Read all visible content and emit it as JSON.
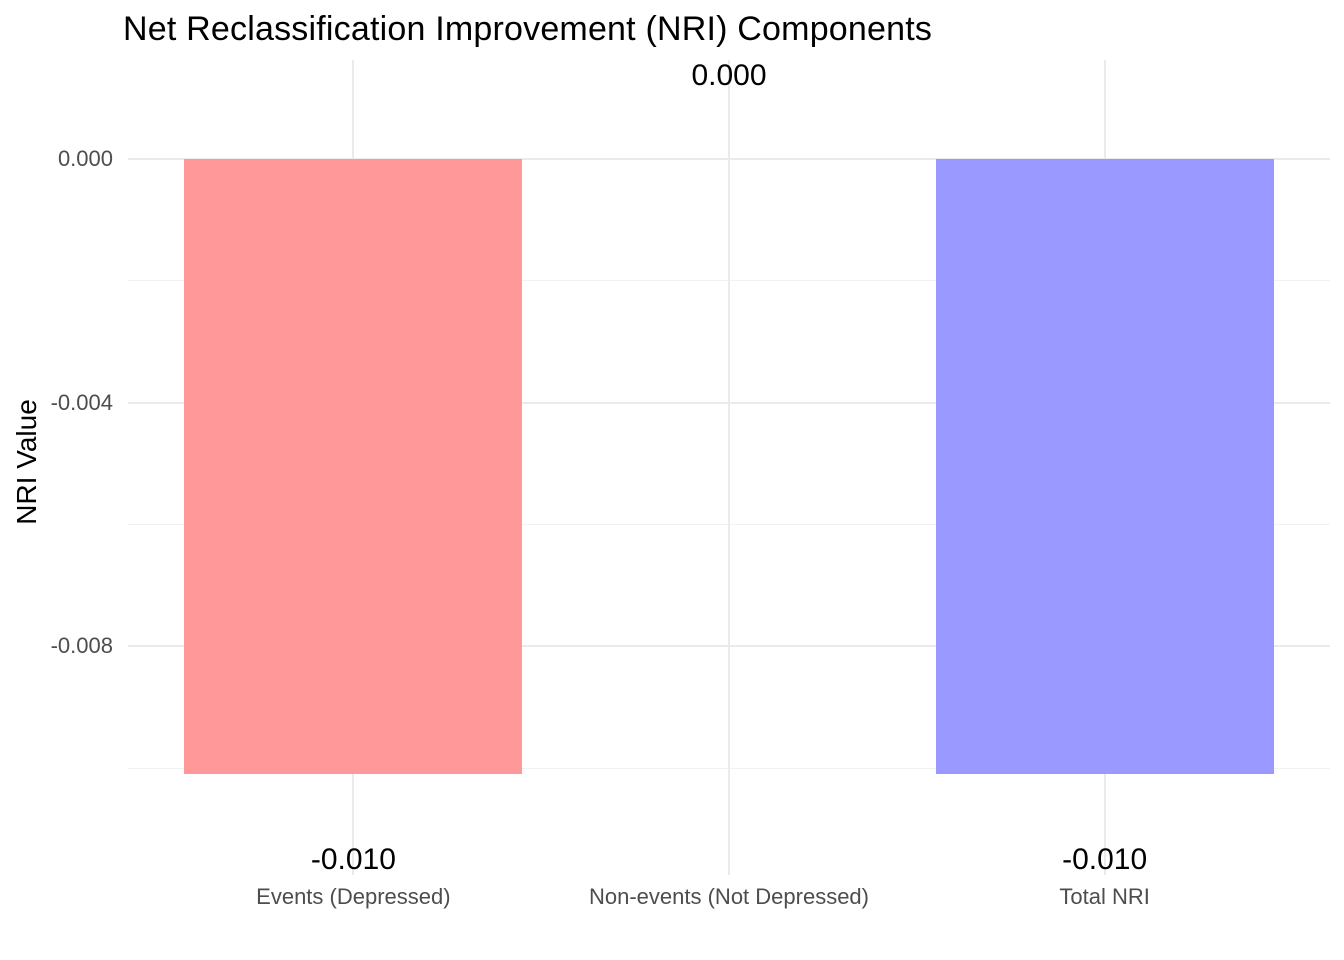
{
  "chart_data": {
    "type": "bar",
    "title": "Net Reclassification Improvement (NRI) Components",
    "xlabel": "",
    "ylabel": "NRI Value",
    "categories": [
      "Events (Depressed)",
      "Non-events (Not Depressed)",
      "Total NRI"
    ],
    "category_ids": [
      "events-depressed",
      "non-events-not-depressed",
      "total-nri"
    ],
    "values": [
      -0.0101,
      0.0,
      -0.0101
    ],
    "value_labels": [
      "-0.010",
      "0.000",
      "-0.010"
    ],
    "bar_colors": [
      "#FF9999",
      null,
      "#9999FF"
    ],
    "yticks": [
      0.0,
      -0.004,
      -0.008
    ],
    "ytick_labels": [
      "0.000",
      "-0.004",
      "-0.008"
    ],
    "yticks_minor": [
      -0.002,
      -0.006,
      -0.01
    ],
    "ylim": [
      0.0016,
      -0.0118
    ],
    "grid": "on",
    "legend": "none",
    "background": "#ffffff",
    "grid_color_major": "#EBEBEB",
    "grid_color_minor": "#F1F1F1",
    "axis_text_color": "#4D4D4D",
    "title_color": "#000000"
  }
}
